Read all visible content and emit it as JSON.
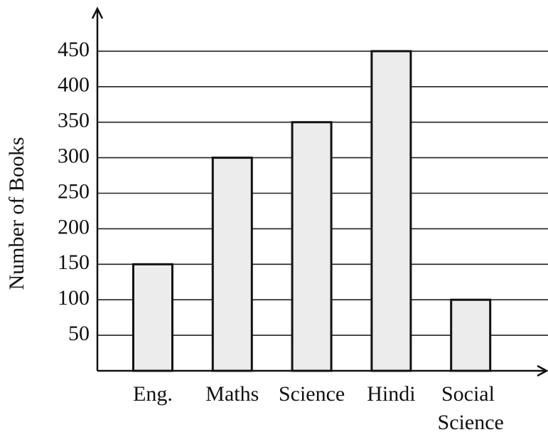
{
  "chart_data": {
    "type": "bar",
    "y_label": "Number of Books",
    "categories": [
      "Eng.",
      "Maths",
      "Science",
      "Hindi",
      "Social Science"
    ],
    "values": [
      150,
      300,
      350,
      450,
      100
    ],
    "color": "#ececec",
    "ylim": [
      0,
      500
    ],
    "yticks": [
      50,
      100,
      150,
      200,
      250,
      300,
      350,
      400,
      450
    ],
    "grid": true
  }
}
